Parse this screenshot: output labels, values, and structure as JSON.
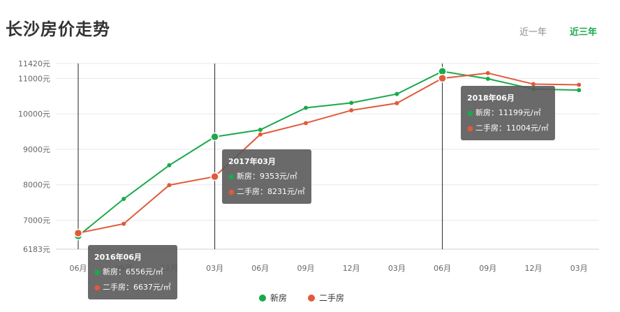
{
  "header": {
    "title": "长沙房价走势"
  },
  "range_tabs": [
    {
      "label": "近一年",
      "active": false
    },
    {
      "label": "近三年",
      "active": true
    }
  ],
  "colors": {
    "new": "#1aa94c",
    "second": "#e05a3a",
    "grid": "#e8e8e8",
    "axis_text": "#666666"
  },
  "chart_data": {
    "type": "line",
    "title": "长沙房价走势",
    "xlabel": "",
    "ylabel": "",
    "x": [
      "2016-06",
      "2016-09",
      "2016-12",
      "2017-03",
      "2017-06",
      "2017-09",
      "2017-12",
      "2018-03",
      "2018-06",
      "2018-09",
      "2018-12",
      "2019-03"
    ],
    "x_tick_labels": [
      "06月",
      "09月",
      "12月",
      "03月",
      "06月",
      "09月",
      "12月",
      "03月",
      "06月",
      "09月",
      "12月",
      "03月"
    ],
    "y_ticks": [
      6183,
      7000,
      8000,
      9000,
      10000,
      11000,
      11420
    ],
    "y_tick_labels": [
      "6183元",
      "7000元",
      "8000元",
      "9000元",
      "10000元",
      "11000元",
      "11420元"
    ],
    "ylim": [
      6183,
      11420
    ],
    "grid": true,
    "legend_position": "bottom-center",
    "series": [
      {
        "name": "新房",
        "color": "#1aa94c",
        "values": [
          6556,
          7600,
          8550,
          9353,
          9550,
          10170,
          10310,
          10560,
          11199,
          10990,
          10700,
          10670
        ]
      },
      {
        "name": "二手房",
        "color": "#e05a3a",
        "values": [
          6637,
          6900,
          7990,
          8231,
          9420,
          9740,
          10100,
          10300,
          11004,
          11150,
          10840,
          10820
        ]
      }
    ],
    "highlight_indices": [
      0,
      3,
      8
    ],
    "tooltips": [
      {
        "index": 0,
        "title": "2016年06月",
        "lines": [
          "新房：6556元/㎡",
          "二手房：6637元/㎡"
        ]
      },
      {
        "index": 3,
        "title": "2017年03月",
        "lines": [
          "新房：9353元/㎡",
          "二手房：8231元/㎡"
        ]
      },
      {
        "index": 8,
        "title": "2018年06月",
        "lines": [
          "新房：11199元/㎡",
          "二手房：11004元/㎡"
        ]
      }
    ]
  }
}
